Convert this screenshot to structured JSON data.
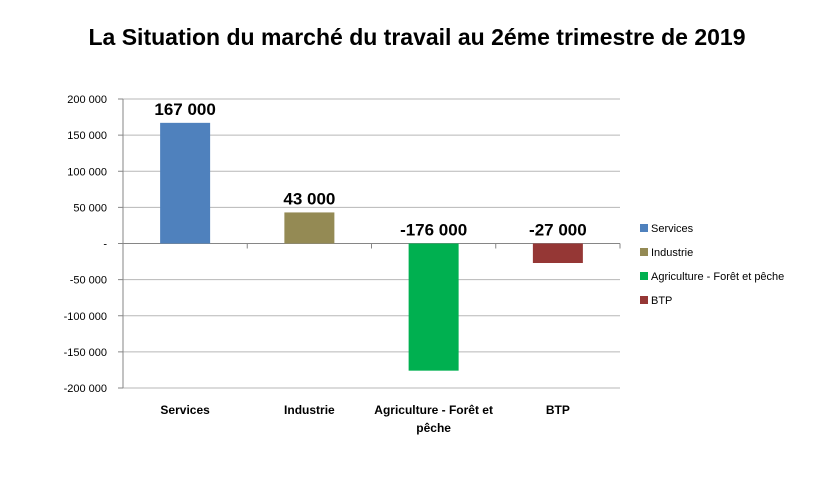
{
  "chart_data": {
    "type": "bar",
    "title": "La Situation du marché du travail au 2éme trimestre de 2019",
    "categories": [
      "Services",
      "Industrie",
      "Agriculture - Forêt et pêche",
      "BTP"
    ],
    "category_label_lines": [
      [
        "Services"
      ],
      [
        "Industrie"
      ],
      [
        "Agriculture - Forêt et",
        "pêche"
      ],
      [
        "BTP"
      ]
    ],
    "values": [
      167000,
      43000,
      -176000,
      -27000
    ],
    "data_labels": [
      "167 000",
      "43 000",
      "-176 000",
      "-27 000"
    ],
    "colors": [
      "#4F81BD",
      "#948A54",
      "#00B050",
      "#953735"
    ],
    "ylim": [
      -200000,
      200000
    ],
    "yticks": [
      200000,
      150000,
      100000,
      50000,
      0,
      -50000,
      -100000,
      -150000,
      -200000
    ],
    "ytick_labels": [
      "200 000",
      "150 000",
      "100 000",
      "50 000",
      "-",
      "-50 000",
      "-100 000",
      "-150 000",
      "-200 000"
    ],
    "grid": true,
    "legend": {
      "position": "right",
      "entries": [
        "Services",
        "Industrie",
        "Agriculture - Forêt et pêche",
        "BTP"
      ]
    }
  }
}
